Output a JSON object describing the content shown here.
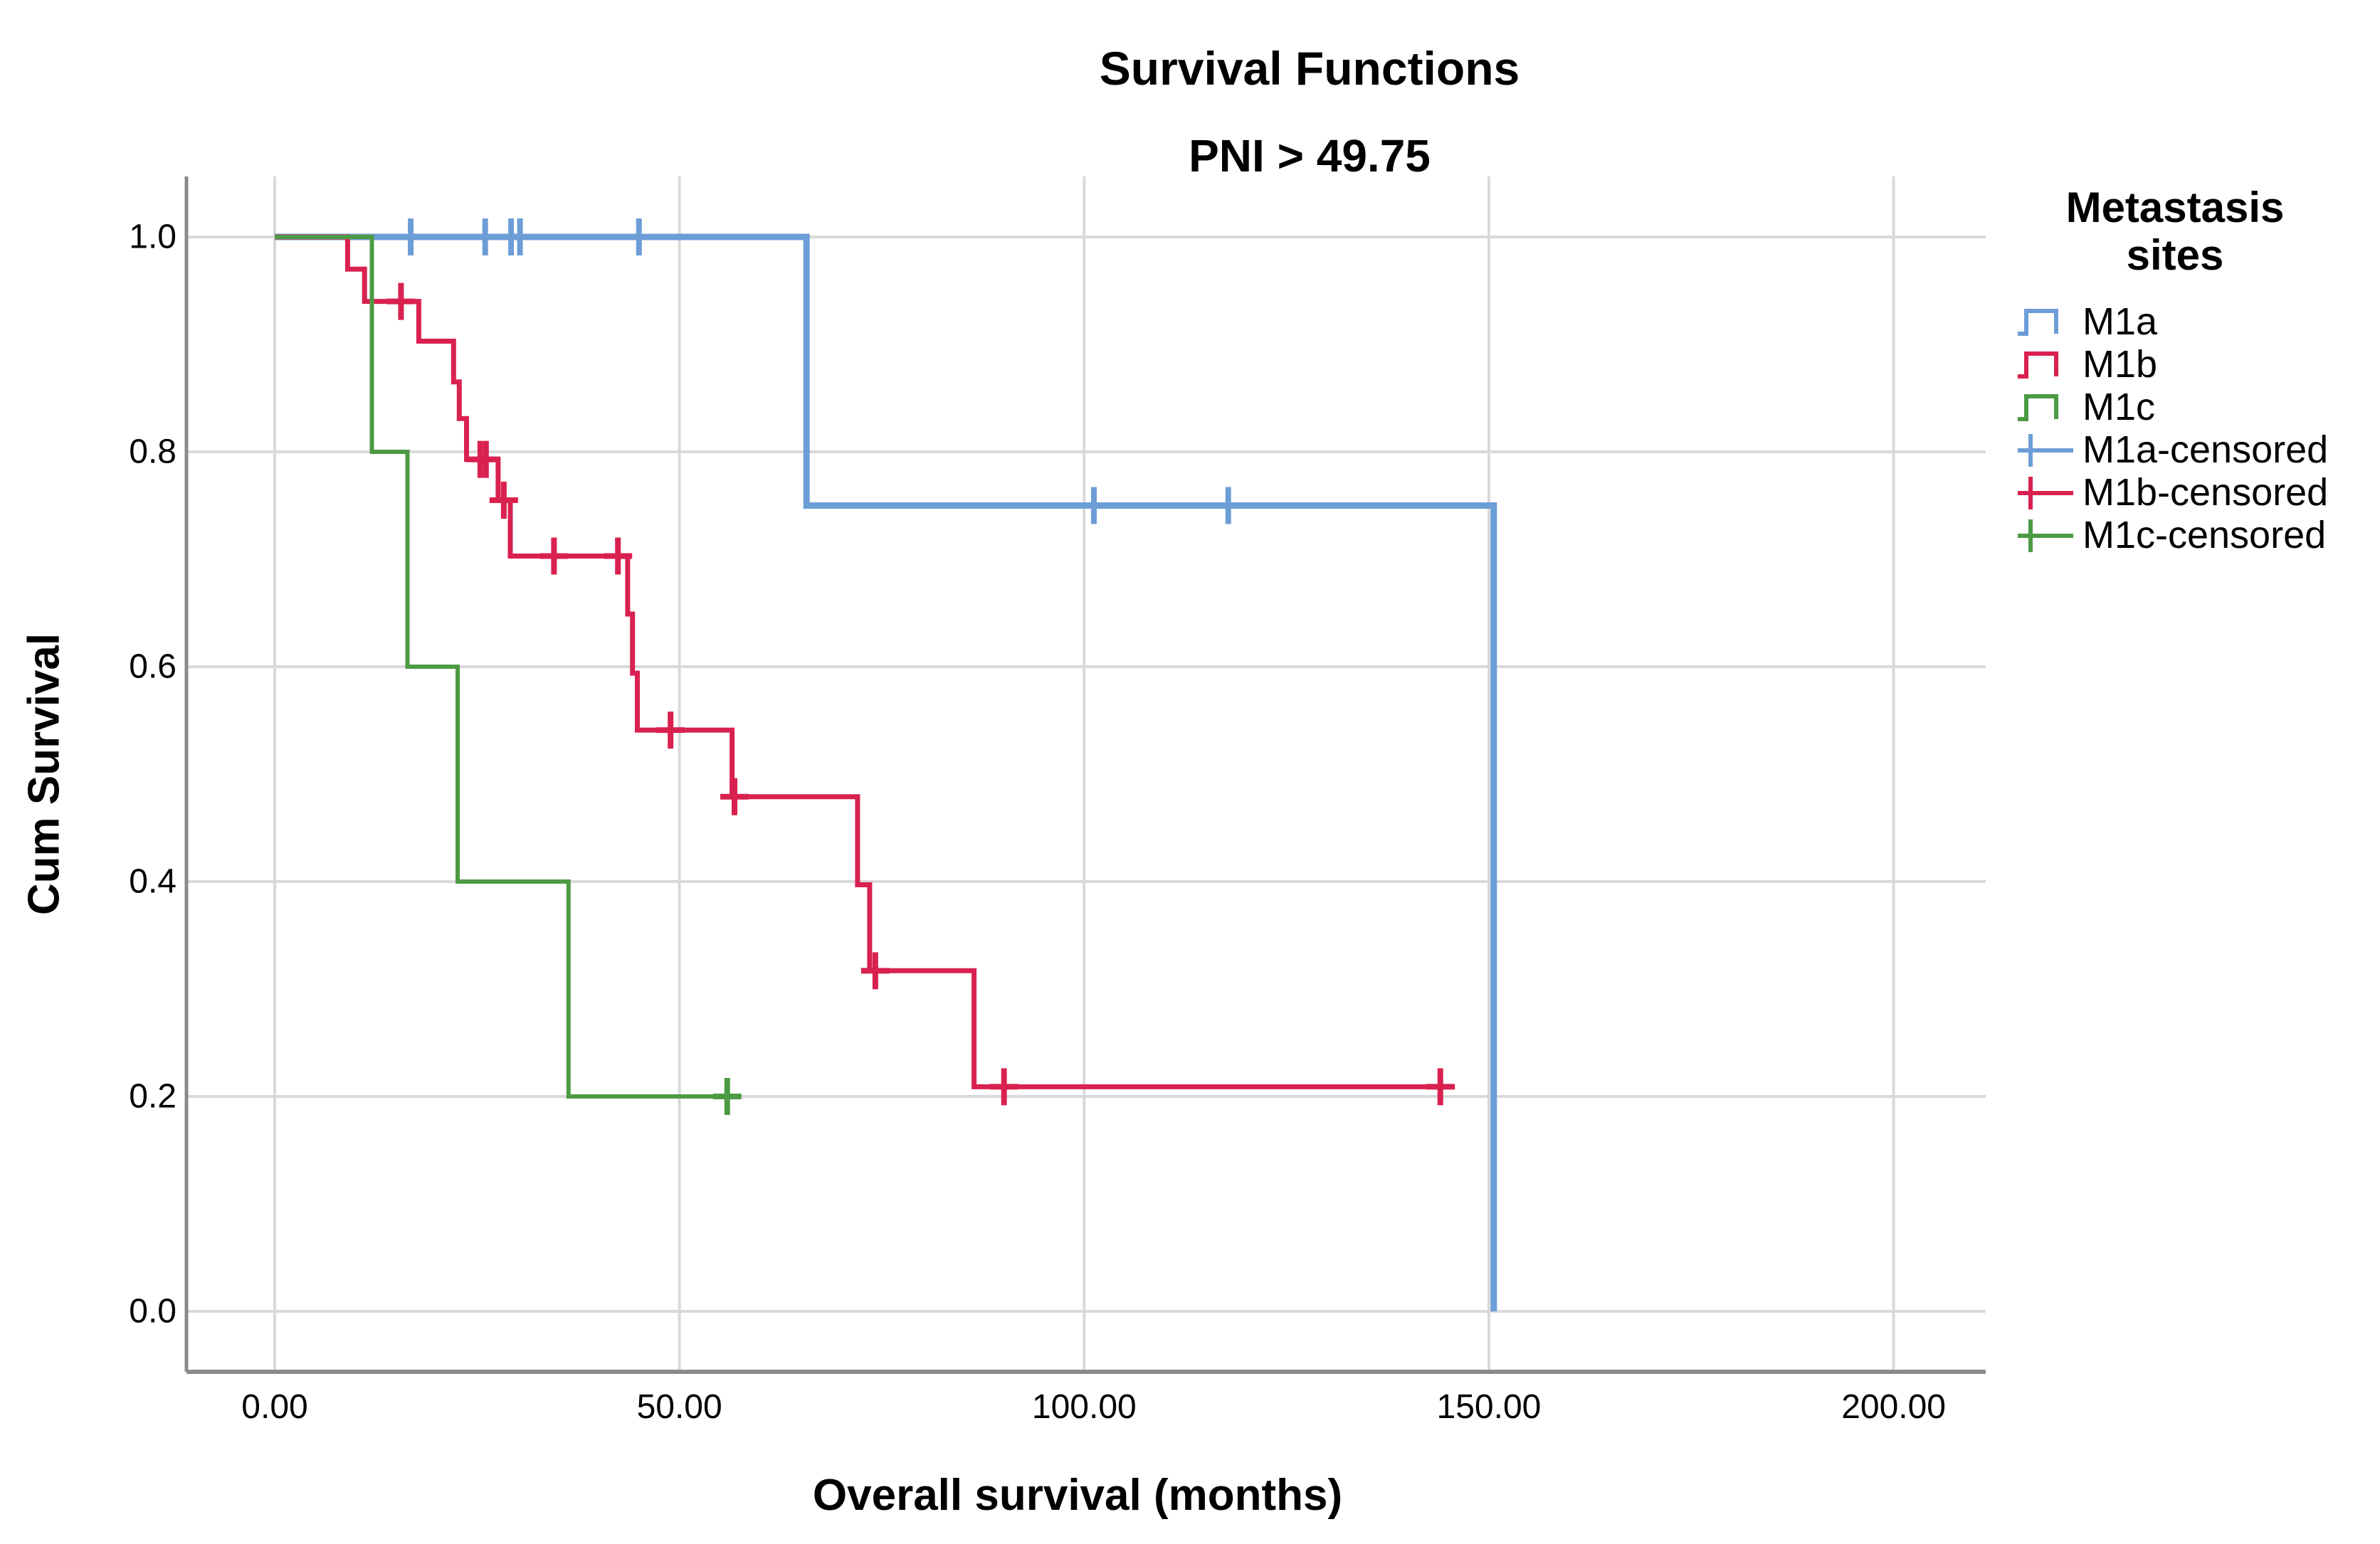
{
  "title": "Survival Functions",
  "subtitle": "PNI > 49.75",
  "axes": {
    "x_label": "Overall survival (months)",
    "y_label": "Cum Survival",
    "x_ticks": [
      "0.00",
      "50.00",
      "100.00",
      "150.00",
      "200.00"
    ],
    "y_ticks": [
      "0.0",
      "0.2",
      "0.4",
      "0.6",
      "0.8",
      "1.0"
    ]
  },
  "legend": {
    "title_lines": [
      "Metastasis",
      "sites"
    ],
    "entries": [
      {
        "label": "M1a",
        "glyph": "step-line",
        "color": "#6D9DD6"
      },
      {
        "label": "M1b",
        "glyph": "step-line",
        "color": "#D9214F"
      },
      {
        "label": "M1c",
        "glyph": "step-line",
        "color": "#4D9A44"
      },
      {
        "label": "M1a-censored",
        "glyph": "censored-plus",
        "color": "#6D9DD6"
      },
      {
        "label": "M1b-censored",
        "glyph": "censored-plus",
        "color": "#D9214F"
      },
      {
        "label": "M1c-censored",
        "glyph": "censored-plus",
        "color": "#4D9A44"
      }
    ]
  },
  "colors": {
    "m1a": "#6D9DD6",
    "m1b": "#D9214F",
    "m1c": "#4D9A44",
    "gridline": "#D9D9D9",
    "axis_line": "#8A8A8A",
    "text": "#000000",
    "background": "#FFFFFF"
  },
  "chart_data": {
    "type": "line",
    "subtype": "kaplan-meier-step-survival",
    "title": "Survival Functions",
    "subtitle": "PNI > 49.75",
    "xlabel": "Overall survival (months)",
    "ylabel": "Cum Survival",
    "x_tick_values": [
      0,
      50,
      100,
      150,
      200
    ],
    "y_tick_values": [
      0,
      0.2,
      0.4,
      0.6,
      0.8,
      1.0
    ],
    "xlim": [
      -11,
      211
    ],
    "ylim": [
      -0.06,
      1.06
    ],
    "grid": true,
    "legend_position": "right",
    "legend_title": "Metastasis sites",
    "series": [
      {
        "name": "M1a",
        "color": "#6D9DD6",
        "steps": [
          [
            0,
            1
          ],
          [
            65.7,
            1
          ],
          [
            65.7,
            0.75
          ],
          [
            150.6,
            0.75
          ],
          [
            150.6,
            0
          ]
        ],
        "censored": [
          [
            16.8,
            1
          ],
          [
            26.0,
            1
          ],
          [
            29.2,
            1
          ],
          [
            30.3,
            1
          ],
          [
            45.0,
            1
          ],
          [
            101.2,
            0.75
          ],
          [
            117.8,
            0.75
          ]
        ]
      },
      {
        "name": "M1b",
        "color": "#D9214F",
        "steps": [
          [
            0,
            1
          ],
          [
            9.0,
            1
          ],
          [
            9.0,
            0.97
          ],
          [
            11.1,
            0.97
          ],
          [
            11.1,
            0.94
          ],
          [
            17.8,
            0.94
          ],
          [
            17.8,
            0.903
          ],
          [
            22.1,
            0.903
          ],
          [
            22.1,
            0.865
          ],
          [
            22.8,
            0.865
          ],
          [
            22.8,
            0.831
          ],
          [
            23.7,
            0.831
          ],
          [
            23.7,
            0.793
          ],
          [
            27.6,
            0.793
          ],
          [
            27.6,
            0.755
          ],
          [
            29.1,
            0.755
          ],
          [
            29.1,
            0.703
          ],
          [
            43.6,
            0.703
          ],
          [
            43.6,
            0.649
          ],
          [
            44.2,
            0.649
          ],
          [
            44.2,
            0.594
          ],
          [
            44.8,
            0.594
          ],
          [
            44.8,
            0.541
          ],
          [
            56.5,
            0.541
          ],
          [
            56.5,
            0.479
          ],
          [
            72.0,
            0.479
          ],
          [
            72.0,
            0.397
          ],
          [
            73.5,
            0.397
          ],
          [
            73.5,
            0.317
          ],
          [
            86.4,
            0.317
          ],
          [
            86.4,
            0.209
          ],
          [
            145.8,
            0.209
          ]
        ],
        "censored": [
          [
            15.6,
            0.94
          ],
          [
            25.4,
            0.793
          ],
          [
            26.1,
            0.793
          ],
          [
            28.3,
            0.755
          ],
          [
            34.5,
            0.703
          ],
          [
            42.4,
            0.703
          ],
          [
            48.9,
            0.541
          ],
          [
            56.8,
            0.479
          ],
          [
            74.2,
            0.317
          ],
          [
            90.1,
            0.209
          ],
          [
            144.0,
            0.209
          ]
        ]
      },
      {
        "name": "M1c",
        "color": "#4D9A44",
        "steps": [
          [
            0,
            1
          ],
          [
            12.0,
            1
          ],
          [
            12.0,
            0.8
          ],
          [
            16.4,
            0.8
          ],
          [
            16.4,
            0.6
          ],
          [
            22.6,
            0.6
          ],
          [
            22.6,
            0.4
          ],
          [
            36.3,
            0.4
          ],
          [
            36.3,
            0.2
          ],
          [
            57.0,
            0.2
          ]
        ],
        "censored": [
          [
            55.9,
            0.2
          ]
        ]
      }
    ]
  }
}
